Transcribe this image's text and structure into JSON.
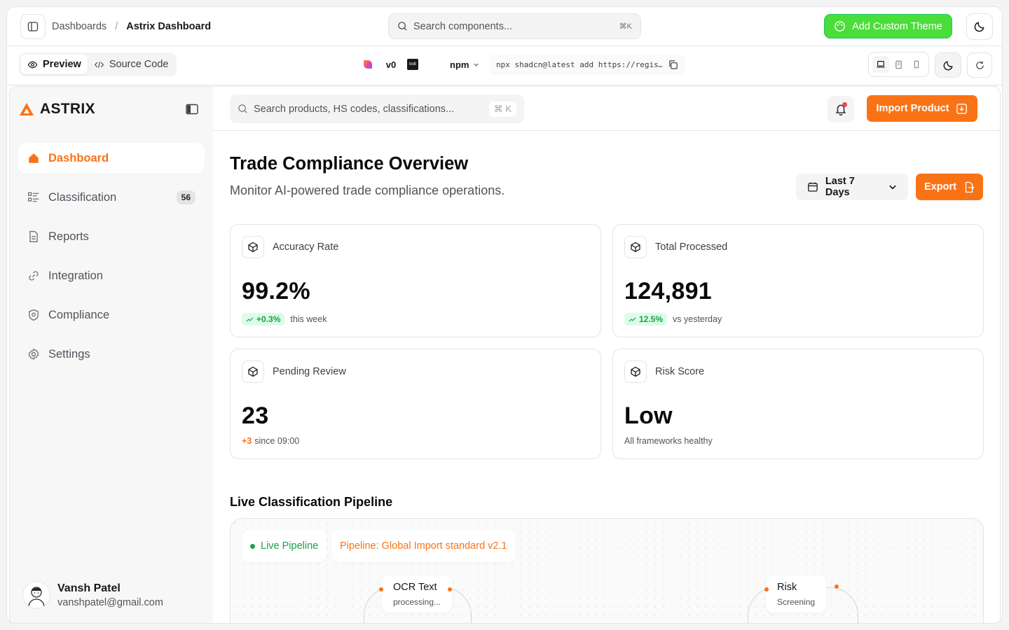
{
  "topbar": {
    "breadcrumb": [
      "Dashboards",
      "Astrix Dashboard"
    ],
    "search_placeholder": "Search components...",
    "search_shortcut": "⌘K",
    "add_theme_label": "Add Custom Theme"
  },
  "subbar": {
    "preview_label": "Preview",
    "source_label": "Source Code",
    "package_manager": "npm",
    "install_command": "npx shadcn@latest add https://regis…"
  },
  "sidebar": {
    "brand": "ASTRIX",
    "items": [
      {
        "label": "Dashboard",
        "icon": "home-icon",
        "active": true
      },
      {
        "label": "Classification",
        "icon": "list-icon",
        "badge": "56"
      },
      {
        "label": "Reports",
        "icon": "file-icon"
      },
      {
        "label": "Integration",
        "icon": "link-icon"
      },
      {
        "label": "Compliance",
        "icon": "shield-icon"
      },
      {
        "label": "Settings",
        "icon": "gear-icon"
      }
    ],
    "user": {
      "name": "Vansh Patel",
      "email": "vanshpatel@gmail.com"
    }
  },
  "header": {
    "search_placeholder": "Search products, HS codes, classifications...",
    "search_shortcut": "⌘ K",
    "import_label": "Import Product"
  },
  "page": {
    "title": "Trade Compliance Overview",
    "subtitle": "Monitor AI-powered trade compliance operations.",
    "range_label": "Last 7 Days",
    "export_label": "Export"
  },
  "stats": [
    {
      "label": "Accuracy Rate",
      "value": "99.2%",
      "delta": "+0.3%",
      "note": "this week"
    },
    {
      "label": "Total Processed",
      "value": "124,891",
      "delta": "12.5%",
      "note": "vs yesterday"
    },
    {
      "label": "Pending Review",
      "value": "23",
      "delta": "+3",
      "note": "since 09:00"
    },
    {
      "label": "Risk Score",
      "value": "Low",
      "note": "All frameworks healthy"
    }
  ],
  "pipeline": {
    "title": "Live Classification Pipeline",
    "live_label": "Live Pipeline",
    "pipeline_label": "Pipeline: Global Import standard v2.1",
    "nodes": [
      {
        "title": "OCR Text",
        "sub": "processing..."
      },
      {
        "title": "Risk",
        "sub": "Screening"
      }
    ]
  },
  "colors": {
    "accent": "#f97316",
    "success": "#16a34a",
    "theme_button": "#4ade3a"
  }
}
